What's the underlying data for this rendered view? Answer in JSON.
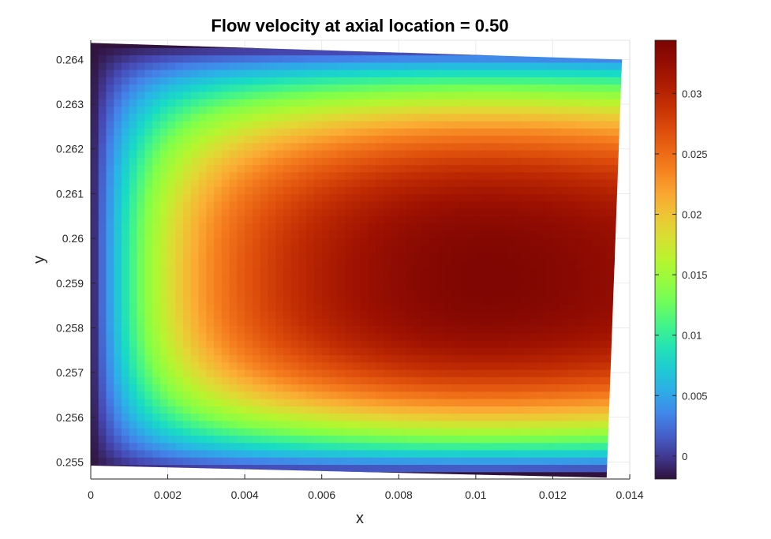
{
  "chart_data": {
    "type": "heatmap",
    "title": "Flow velocity at axial location = 0.50",
    "xlabel": "x",
    "ylabel": "y",
    "xlim": [
      0,
      0.014
    ],
    "ylim": [
      0.25462,
      0.26443
    ],
    "xticks": [
      "0",
      "0.002",
      "0.004",
      "0.006",
      "0.008",
      "0.01",
      "0.012",
      "0.014"
    ],
    "xtick_values": [
      0,
      0.002,
      0.004,
      0.006,
      0.008,
      0.01,
      0.012,
      0.014
    ],
    "yticks": [
      "0.255",
      "0.256",
      "0.257",
      "0.258",
      "0.259",
      "0.26",
      "0.261",
      "0.262",
      "0.263",
      "0.264"
    ],
    "ytick_values": [
      0.255,
      0.256,
      0.257,
      0.258,
      0.259,
      0.26,
      0.261,
      0.262,
      0.263,
      0.264
    ],
    "grid": true,
    "colormap": "turbo",
    "colorbar": {
      "clim": [
        -0.0019,
        0.0344
      ],
      "ticks": [
        "0",
        "0.005",
        "0.01",
        "0.015",
        "0.02",
        "0.025",
        "0.03"
      ],
      "tick_values": [
        0,
        0.005,
        0.01,
        0.015,
        0.02,
        0.025,
        0.03
      ]
    },
    "domain_corners": {
      "top_left": [
        0,
        0.26437
      ],
      "top_right": [
        0.0138,
        0.264
      ],
      "bottom_right": [
        0.0134,
        0.25465
      ],
      "bottom_left": [
        0,
        0.25492
      ]
    },
    "field": {
      "peak_value": 0.0344,
      "peak_location": [
        0.0098,
        0.2591
      ],
      "wall_value": -0.0019
    }
  }
}
